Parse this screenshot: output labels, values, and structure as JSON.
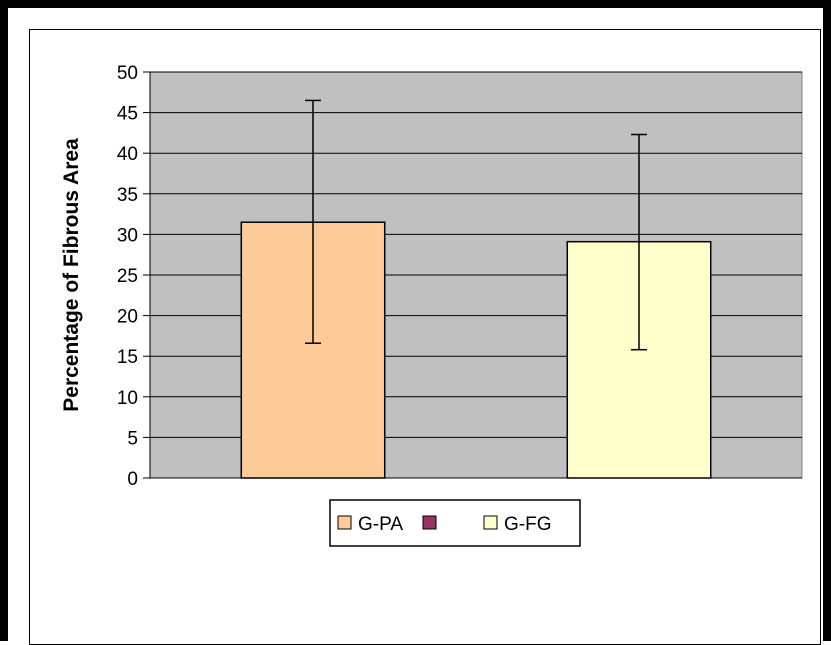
{
  "chart_data": {
    "type": "bar",
    "categories": [
      "G-PA",
      "G-FG"
    ],
    "ylabel": "Percentage of Fibrous Area",
    "xlabel": "",
    "ylim": [
      0,
      50
    ],
    "yticks": [
      0,
      5,
      10,
      15,
      20,
      25,
      30,
      35,
      40,
      45,
      50
    ],
    "grid": true,
    "legend": "bottom-center",
    "series": [
      {
        "name": "G-PA",
        "value": 31.5,
        "error_low": 16.6,
        "error_high": 46.5,
        "color": "#ffcc99"
      },
      {
        "name": "",
        "value": null,
        "color": "#993366"
      },
      {
        "name": "G-FG",
        "value": 29.1,
        "error_low": 15.8,
        "error_high": 42.3,
        "color": "#ffffcc"
      }
    ],
    "legend_entries": [
      {
        "label": "G-PA",
        "color": "#ffcc99"
      },
      {
        "label": "",
        "color": "#993366"
      },
      {
        "label": "G-FG",
        "color": "#ffffcc"
      }
    ],
    "plot_background": "#c0c0c0"
  }
}
